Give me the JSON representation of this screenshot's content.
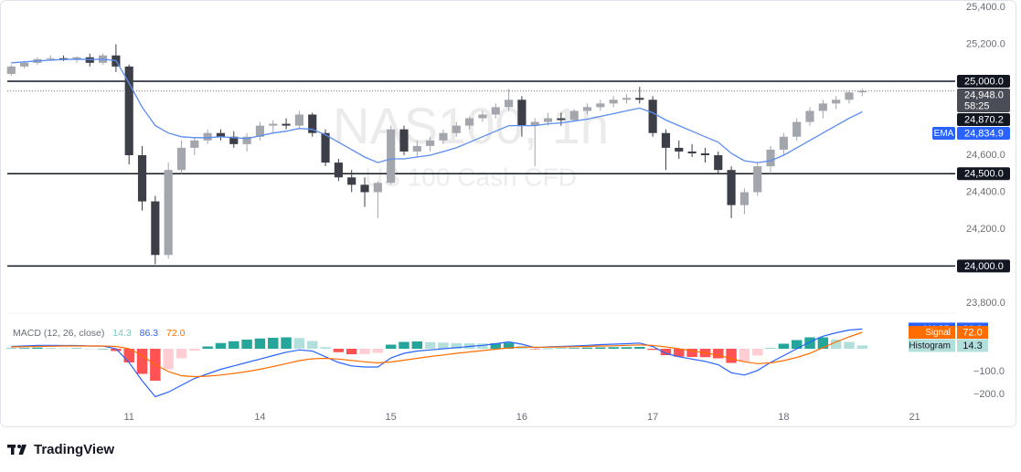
{
  "chart_data": {
    "type": "candlestick",
    "title": "NAS100, 1h",
    "subtitle": "US 100 Cash CFD",
    "x": [
      -0.9,
      -0.8,
      -0.7,
      -0.6,
      -0.5,
      -0.4,
      -0.3,
      -0.2,
      -0.1,
      0,
      0.1,
      0.2,
      0.3,
      0.4,
      0.5,
      0.6,
      0.7,
      0.8,
      0.9,
      1,
      1.1,
      1.2,
      1.3,
      1.4,
      1.5,
      1.6,
      1.7,
      1.8,
      1.9,
      2,
      2.1,
      2.2,
      2.3,
      2.4,
      2.5,
      2.6,
      2.7,
      2.8,
      2.9,
      3,
      3.1,
      3.2,
      3.3,
      3.4,
      3.5,
      3.6,
      3.7,
      3.8,
      3.9,
      4,
      4.1,
      4.2,
      4.3,
      4.4,
      4.5,
      4.6,
      4.7,
      4.8,
      4.9,
      5,
      5.1,
      5.2,
      5.3,
      5.4,
      5.5,
      5.6
    ],
    "xlim": [
      -0.93,
      6.31
    ],
    "xticks": [
      {
        "value": 0,
        "label": "11"
      },
      {
        "value": 1,
        "label": "14"
      },
      {
        "value": 2,
        "label": "15"
      },
      {
        "value": 3,
        "label": "16"
      },
      {
        "value": 4,
        "label": "17"
      },
      {
        "value": 5,
        "label": "18"
      },
      {
        "value": 6,
        "label": "21"
      }
    ],
    "open": [
      25040,
      25080,
      25100,
      25120,
      25125,
      25120,
      25130,
      25100,
      25140,
      25080,
      24600,
      24350,
      24060,
      24520,
      24640,
      24680,
      24720,
      24700,
      24660,
      24700,
      24760,
      24770,
      24760,
      24820,
      24720,
      24560,
      24480,
      24440,
      24400,
      24450,
      24740,
      24620,
      24650,
      24680,
      24720,
      24760,
      24800,
      24820,
      24860,
      24900,
      24760,
      24780,
      24800,
      24790,
      24840,
      24860,
      24880,
      24900,
      24910,
      24900,
      24720,
      24640,
      24620,
      24610,
      24600,
      24520,
      24330,
      24400,
      24540,
      24630,
      24700,
      24780,
      24840,
      24880,
      24900,
      24940
    ],
    "high": [
      25090,
      25110,
      25130,
      25140,
      25140,
      25135,
      25150,
      25150,
      25200,
      25090,
      24650,
      24380,
      24560,
      24680,
      24700,
      24740,
      24740,
      24730,
      24720,
      24780,
      24790,
      24800,
      24840,
      24830,
      24740,
      24580,
      24520,
      24480,
      24460,
      24760,
      24760,
      24680,
      24700,
      24740,
      24780,
      24810,
      24840,
      24880,
      24960,
      24920,
      24800,
      24830,
      24830,
      24850,
      24880,
      24900,
      24920,
      24930,
      24970,
      24920,
      24740,
      24680,
      24660,
      24640,
      24620,
      24540,
      24420,
      24560,
      24650,
      24720,
      24800,
      24860,
      24900,
      24920,
      24950,
      24960
    ],
    "low": [
      25030,
      25070,
      25090,
      25110,
      25110,
      25100,
      25080,
      25090,
      25050,
      24550,
      24300,
      24010,
      24040,
      24500,
      24600,
      24660,
      24680,
      24640,
      24620,
      24680,
      24720,
      24740,
      24740,
      24700,
      24540,
      24460,
      24400,
      24320,
      24260,
      24440,
      24600,
      24590,
      24620,
      24660,
      24700,
      24740,
      24780,
      24800,
      24840,
      24700,
      24540,
      24760,
      24760,
      24780,
      24820,
      24840,
      24860,
      24880,
      24880,
      24700,
      24520,
      24580,
      24590,
      24560,
      24500,
      24260,
      24280,
      24380,
      24500,
      24600,
      24680,
      24760,
      24800,
      24850,
      24880,
      24920
    ],
    "close": [
      25080,
      25100,
      25120,
      25125,
      25120,
      25130,
      25100,
      25140,
      25080,
      24600,
      24350,
      24060,
      24520,
      24640,
      24680,
      24720,
      24700,
      24660,
      24700,
      24760,
      24770,
      24760,
      24820,
      24720,
      24560,
      24480,
      24440,
      24400,
      24450,
      24740,
      24620,
      24650,
      24680,
      24720,
      24760,
      24800,
      24820,
      24860,
      24900,
      24760,
      24780,
      24800,
      24790,
      24840,
      24860,
      24880,
      24900,
      24910,
      24900,
      24720,
      24640,
      24620,
      24610,
      24600,
      24520,
      24330,
      24400,
      24540,
      24630,
      24700,
      24780,
      24840,
      24880,
      24900,
      24940,
      24948
    ],
    "up_color": "#a3a6ad",
    "down_color": "#3c3f47",
    "ylim": [
      23760,
      25440
    ],
    "yticks": [
      {
        "value": 25400,
        "label": "25,400.0"
      },
      {
        "value": 25200,
        "label": "25,200.0"
      },
      {
        "value": 24600,
        "label": "24,600.0"
      },
      {
        "value": 24400,
        "label": "24,400.0"
      },
      {
        "value": 24200,
        "label": "24,200.0"
      },
      {
        "value": 23800,
        "label": "23,800.0"
      }
    ],
    "series": [
      {
        "name": "EMA",
        "color": "#5b8def",
        "values": [
          25100,
          25105,
          25110,
          25115,
          25118,
          25120,
          25118,
          25120,
          25112,
          24990,
          24860,
          24760,
          24720,
          24700,
          24695,
          24695,
          24700,
          24695,
          24690,
          24705,
          24720,
          24730,
          24745,
          24740,
          24710,
          24670,
          24630,
          24590,
          24560,
          24580,
          24580,
          24590,
          24600,
          24620,
          24640,
          24670,
          24700,
          24730,
          24760,
          24760,
          24760,
          24770,
          24775,
          24785,
          24795,
          24810,
          24825,
          24840,
          24855,
          24830,
          24790,
          24760,
          24730,
          24700,
          24670,
          24610,
          24570,
          24560,
          24570,
          24600,
          24640,
          24680,
          24720,
          24760,
          24800,
          24834.9
        ]
      }
    ],
    "hlines": [
      25000,
      24500,
      24000
    ],
    "last_price_line": 24948,
    "price_tags": [
      {
        "value": 25000,
        "label": "25,000.0",
        "color": "#131722"
      },
      {
        "value": 24948,
        "label": "24,948.0",
        "sublabel": "58:25",
        "color": "#4a4d55"
      },
      {
        "value": 24870.2,
        "label": "24,870.2",
        "color": "#131722"
      },
      {
        "value": 24834.9,
        "label": "24,834.9",
        "name": "EMA",
        "color": "#2962ff"
      },
      {
        "value": 24500,
        "label": "24,500.0",
        "color": "#131722"
      },
      {
        "value": 24000,
        "label": "24,000.0",
        "color": "#131722"
      }
    ],
    "macd": {
      "title": "MACD (12, 26, close)",
      "ylim": [
        -320,
        148
      ],
      "yticks": [
        {
          "value": -100,
          "label": "−100.0"
        },
        {
          "value": -200,
          "label": "−200.0"
        }
      ],
      "histogram": {
        "name": "Histogram",
        "value_label": "14.3",
        "colors": [
          "#26a69a",
          "#b2dfdb",
          "#ff5252",
          "#ffcdd2"
        ],
        "values": [
          2,
          3,
          5,
          4,
          2,
          2,
          0,
          0,
          -10,
          -60,
          -110,
          -140,
          -90,
          -42,
          -8,
          10,
          25,
          33,
          40,
          45,
          48,
          50,
          47,
          34,
          7,
          -15,
          -24,
          -23,
          -18,
          18,
          30,
          32,
          29,
          27,
          25,
          24,
          23,
          24,
          26,
          13,
          -2,
          1,
          2,
          3,
          5,
          6,
          7,
          7,
          8,
          -5,
          -28,
          -35,
          -36,
          -37,
          -42,
          -62,
          -58,
          -30,
          2,
          22,
          38,
          50,
          50,
          40,
          30,
          14.3
        ]
      },
      "macd": {
        "name": "MACD",
        "color": "#2962ff",
        "value_label": "86.3",
        "values": [
          10,
          12,
          15,
          15,
          14,
          14,
          12,
          12,
          0,
          -60,
          -140,
          -210,
          -190,
          -160,
          -130,
          -110,
          -90,
          -75,
          -60,
          -45,
          -30,
          -15,
          -5,
          -10,
          -35,
          -60,
          -75,
          -80,
          -80,
          -40,
          -20,
          -10,
          -5,
          0,
          5,
          10,
          15,
          22,
          30,
          20,
          5,
          8,
          10,
          12,
          15,
          18,
          20,
          22,
          25,
          10,
          -20,
          -35,
          -45,
          -55,
          -70,
          -105,
          -115,
          -95,
          -60,
          -30,
          0,
          30,
          55,
          70,
          82,
          86.3
        ]
      },
      "signal": {
        "name": "Signal",
        "color": "#ff6d00",
        "value_label": "72.0",
        "values": [
          8,
          9,
          10,
          11,
          12,
          12,
          12,
          12,
          10,
          0,
          -30,
          -70,
          -100,
          -118,
          -122,
          -120,
          -115,
          -108,
          -100,
          -90,
          -78,
          -65,
          -52,
          -44,
          -42,
          -45,
          -51,
          -57,
          -62,
          -58,
          -50,
          -42,
          -34,
          -27,
          -20,
          -14,
          -8,
          -2,
          4,
          7,
          7,
          7,
          8,
          9,
          10,
          12,
          13,
          15,
          17,
          15,
          8,
          0,
          -9,
          -18,
          -28,
          -43,
          -57,
          -65,
          -62,
          -52,
          -38,
          -20,
          5,
          30,
          52,
          72
        ]
      }
    }
  },
  "footer": {
    "brand": "TradingView"
  }
}
